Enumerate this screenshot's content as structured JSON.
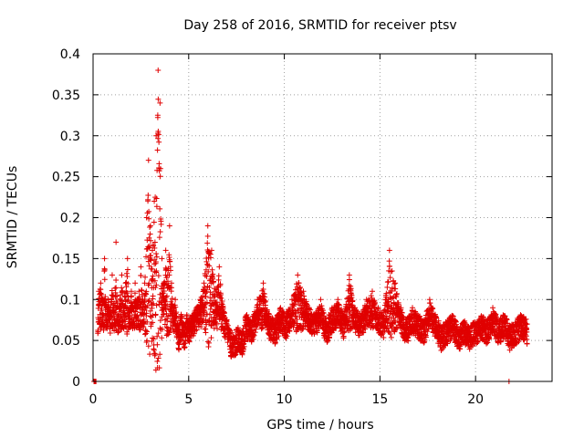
{
  "chart_data": {
    "type": "scatter",
    "title": "Day 258 of 2016, SRMTID for receiver ptsv",
    "xlabel": "GPS time / hours",
    "ylabel": "SRMTID / TECUs",
    "xlim": [
      0,
      24
    ],
    "ylim": [
      0,
      0.4
    ],
    "xticks": [
      0,
      5,
      10,
      15,
      20
    ],
    "xtick_labels": [
      "0",
      "5",
      "10",
      "15",
      "20"
    ],
    "yticks": [
      0,
      0.05,
      0.1,
      0.15,
      0.2,
      0.25,
      0.3,
      0.35,
      0.4
    ],
    "ytick_labels": [
      "0",
      "0.05",
      "0.1",
      "0.15",
      "0.2",
      "0.25",
      "0.3",
      "0.35",
      "0.4"
    ],
    "grid": true,
    "marker": "plus",
    "series_color": "#e00000",
    "series": [
      {
        "name": "SRMTID",
        "description_points": "approximate envelope of dense scatter, generated from these anchor values",
        "x": [
          0.05,
          0.1,
          0.15,
          0.3,
          0.4,
          0.5,
          0.6,
          0.7,
          0.8,
          0.9,
          1.0,
          1.1,
          1.2,
          1.3,
          1.4,
          1.5,
          1.6,
          1.7,
          1.8,
          1.9,
          2.0,
          2.1,
          2.2,
          2.3,
          2.4,
          2.5,
          2.6,
          2.7,
          2.8,
          2.9,
          3.0,
          3.1,
          3.2,
          3.3,
          3.4,
          3.5,
          3.6,
          3.7,
          3.8,
          3.9,
          4.0,
          4.1,
          4.2,
          4.3,
          4.4,
          4.5,
          4.6,
          4.7,
          4.8,
          4.9,
          5.0,
          5.2,
          5.4,
          5.6,
          5.8,
          6.0,
          6.2,
          6.4,
          6.6,
          6.8,
          7.0,
          7.2,
          7.4,
          7.6,
          7.8,
          8.0,
          8.3,
          8.6,
          8.9,
          9.2,
          9.5,
          9.8,
          10.1,
          10.4,
          10.7,
          11.0,
          11.3,
          11.6,
          11.9,
          12.2,
          12.5,
          12.8,
          13.1,
          13.4,
          13.7,
          14.0,
          14.3,
          14.6,
          14.9,
          15.2,
          15.5,
          15.8,
          16.1,
          16.4,
          16.7,
          17.0,
          17.3,
          17.6,
          17.9,
          18.2,
          18.5,
          18.8,
          19.1,
          19.4,
          19.7,
          20.0,
          20.3,
          20.6,
          20.9,
          21.2,
          21.5,
          21.8,
          22.1,
          22.4,
          22.7
        ],
        "y": [
          0.0,
          0.0,
          0.0,
          0.11,
          0.12,
          0.1,
          0.15,
          0.09,
          0.1,
          0.08,
          0.13,
          0.09,
          0.17,
          0.08,
          0.1,
          0.13,
          0.09,
          0.12,
          0.15,
          0.09,
          0.11,
          0.09,
          0.12,
          0.1,
          0.11,
          0.14,
          0.1,
          0.12,
          0.2,
          0.27,
          0.19,
          0.16,
          0.22,
          0.3,
          0.38,
          0.34,
          0.15,
          0.12,
          0.16,
          0.13,
          0.19,
          0.12,
          0.09,
          0.1,
          0.07,
          0.06,
          0.08,
          0.07,
          0.06,
          0.08,
          0.07,
          0.08,
          0.09,
          0.1,
          0.12,
          0.19,
          0.16,
          0.11,
          0.14,
          0.09,
          0.07,
          0.05,
          0.05,
          0.06,
          0.05,
          0.08,
          0.07,
          0.1,
          0.12,
          0.08,
          0.07,
          0.09,
          0.08,
          0.1,
          0.13,
          0.11,
          0.09,
          0.08,
          0.1,
          0.07,
          0.09,
          0.1,
          0.08,
          0.13,
          0.09,
          0.08,
          0.1,
          0.11,
          0.09,
          0.08,
          0.16,
          0.12,
          0.09,
          0.07,
          0.09,
          0.08,
          0.07,
          0.1,
          0.08,
          0.06,
          0.07,
          0.08,
          0.06,
          0.07,
          0.06,
          0.07,
          0.08,
          0.07,
          0.09,
          0.07,
          0.08,
          0.06,
          0.07,
          0.08,
          0.07
        ]
      }
    ]
  }
}
